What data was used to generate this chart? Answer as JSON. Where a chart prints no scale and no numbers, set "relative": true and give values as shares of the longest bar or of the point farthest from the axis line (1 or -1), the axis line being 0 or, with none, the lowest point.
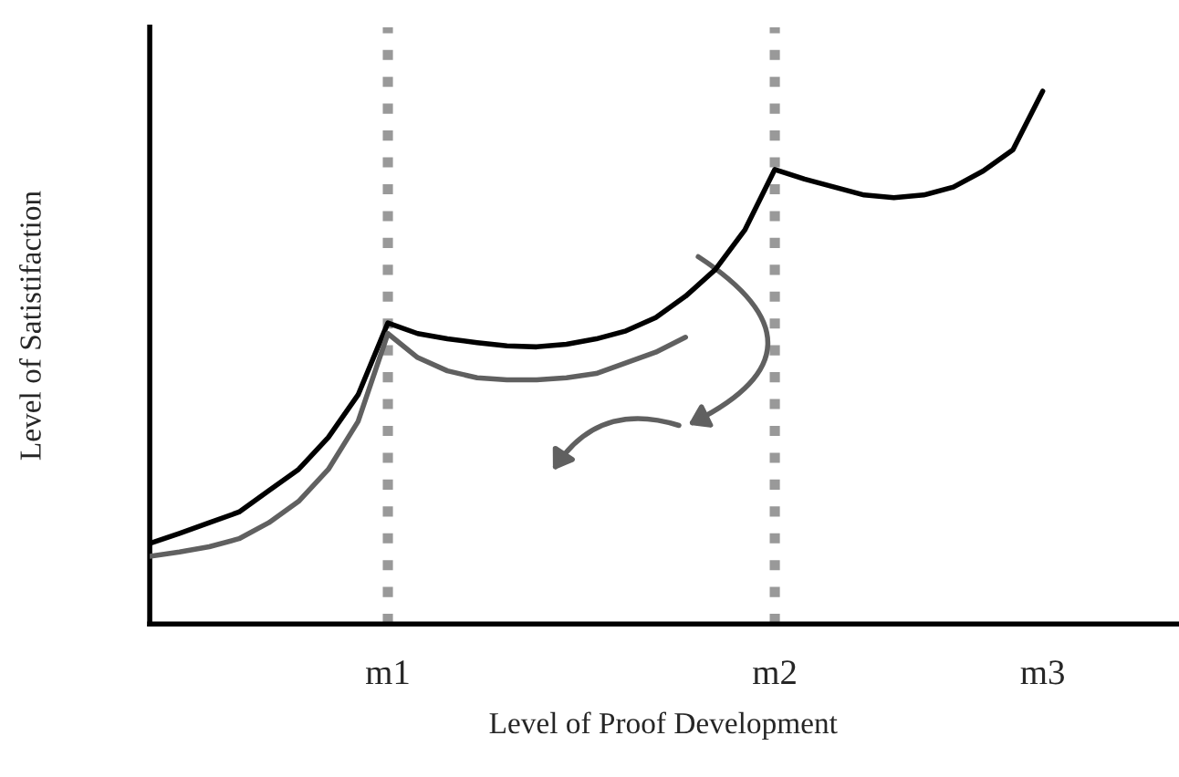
{
  "chart_data": {
    "type": "line",
    "relative": true,
    "xlabel": "Level of Proof Development",
    "ylabel": "Level of Satistifaction",
    "categories": [
      null,
      null,
      null,
      null,
      null,
      null,
      null,
      null,
      "m1",
      null,
      null,
      null,
      null,
      null,
      null,
      null,
      null,
      null,
      null,
      null,
      null,
      "m2",
      null,
      null,
      null,
      null,
      null,
      null,
      null,
      null,
      "m3",
      null,
      null,
      null,
      null
    ],
    "series": [
      {
        "color": "#000000",
        "values": [
          0.151,
          0.17,
          0.19,
          0.21,
          0.25,
          0.29,
          0.35,
          0.43,
          0.565,
          0.545,
          0.535,
          0.528,
          0.522,
          0.52,
          0.525,
          0.535,
          0.55,
          0.575,
          0.615,
          0.665,
          0.74,
          0.853,
          0.835,
          0.82,
          0.805,
          0.8,
          0.805,
          0.82,
          0.85,
          0.89,
          1,
          null,
          null,
          null,
          null
        ]
      },
      {
        "color": "#606060",
        "values": [
          0.127,
          0.135,
          0.145,
          0.16,
          0.19,
          0.23,
          0.29,
          0.38,
          0.545,
          0.5,
          0.475,
          0.462,
          0.458,
          0.458,
          0.462,
          0.47,
          0.49,
          0.51,
          0.538,
          null,
          null,
          null,
          null,
          null,
          null,
          null,
          null,
          null,
          null,
          null,
          null,
          null,
          null,
          null,
          null
        ]
      }
    ],
    "ref_lines": [
      {
        "axis": "x",
        "value": "m1",
        "color": "#999999",
        "line_style": "dotted"
      },
      {
        "axis": "x",
        "value": "m2",
        "color": "#999999",
        "line_style": "dotted"
      }
    ],
    "grid": false,
    "legend": false,
    "marker": "none",
    "line_style": "solid"
  }
}
